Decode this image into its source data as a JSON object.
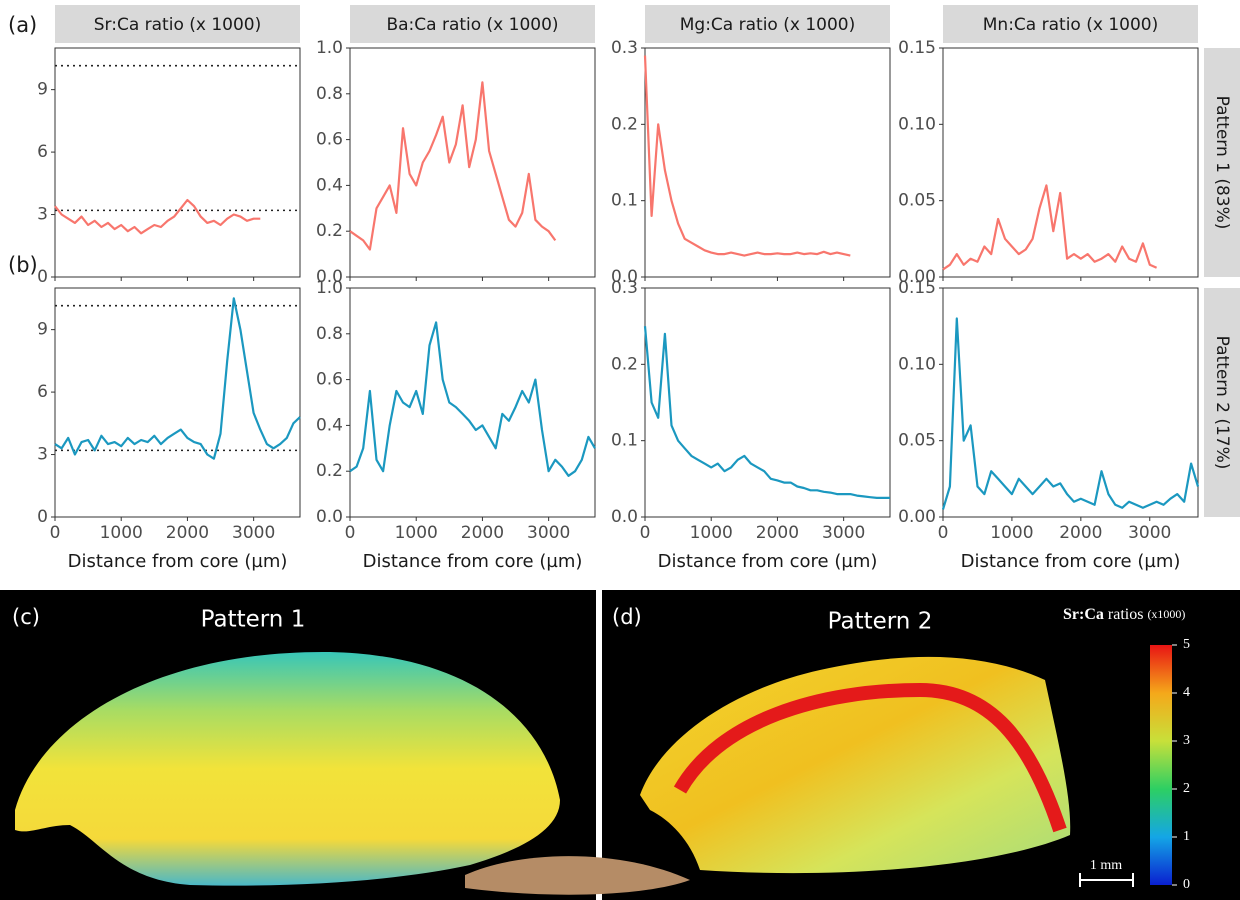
{
  "chart_data": {
    "type": "line",
    "xlabel": "Distance from core (µm)",
    "xlim": [
      0,
      3700
    ],
    "xticks": [
      0,
      1000,
      2000,
      3000
    ],
    "panels": [
      {
        "title": "Sr:Ca ratio (x 1000)",
        "ylim": [
          0,
          11
        ],
        "yticks": [
          0,
          3,
          6,
          9
        ],
        "reference_lines": [
          3.2,
          10.15
        ]
      },
      {
        "title": "Ba:Ca ratio (x 1000)",
        "ylim": [
          0,
          1
        ],
        "yticks": [
          {
            "value": 0,
            "label": "0.0"
          },
          0.2,
          0.4,
          0.6,
          0.8,
          {
            "value": 1,
            "label": "1.0"
          }
        ]
      },
      {
        "title": "Mg:Ca ratio (x 1000)",
        "ylim": [
          0,
          0.3
        ],
        "yticks": [
          {
            "value": 0,
            "label": "0.0"
          },
          0.1,
          0.2,
          0.3
        ]
      },
      {
        "title": "Mn:Ca ratio (x 1000)",
        "ylim": [
          0,
          0.15
        ],
        "yticks": [
          {
            "value": 0,
            "label": "0.00"
          },
          0.05,
          {
            "value": 0.1,
            "label": "0.10"
          },
          0.15
        ]
      }
    ],
    "rows": [
      {
        "tag": "(a)",
        "label": "Pattern 1 (83%)",
        "color": "#f8766d",
        "x": [
          0,
          100,
          200,
          300,
          400,
          500,
          600,
          700,
          800,
          900,
          1000,
          1100,
          1200,
          1300,
          1400,
          1500,
          1600,
          1700,
          1800,
          1900,
          2000,
          2100,
          2200,
          2300,
          2400,
          2500,
          2600,
          2700,
          2800,
          2900,
          3000,
          3100
        ],
        "series": [
          {
            "values": [
              3.4,
              3.0,
              2.8,
              2.6,
              2.9,
              2.5,
              2.7,
              2.4,
              2.6,
              2.3,
              2.5,
              2.2,
              2.4,
              2.1,
              2.3,
              2.5,
              2.4,
              2.7,
              2.9,
              3.3,
              3.7,
              3.4,
              2.9,
              2.6,
              2.7,
              2.5,
              2.8,
              3.0,
              2.9,
              2.7,
              2.8,
              2.8
            ]
          },
          {
            "values": [
              0.2,
              0.18,
              0.16,
              0.12,
              0.3,
              0.35,
              0.4,
              0.28,
              0.65,
              0.45,
              0.4,
              0.5,
              0.55,
              0.62,
              0.7,
              0.5,
              0.58,
              0.75,
              0.48,
              0.6,
              0.85,
              0.55,
              0.45,
              0.35,
              0.25,
              0.22,
              0.28,
              0.45,
              0.25,
              0.22,
              0.2,
              0.16
            ]
          },
          {
            "values": [
              0.29,
              0.08,
              0.2,
              0.14,
              0.1,
              0.07,
              0.05,
              0.045,
              0.04,
              0.035,
              0.032,
              0.03,
              0.03,
              0.032,
              0.03,
              0.028,
              0.03,
              0.032,
              0.03,
              0.03,
              0.031,
              0.03,
              0.03,
              0.032,
              0.03,
              0.031,
              0.03,
              0.033,
              0.03,
              0.032,
              0.03,
              0.028
            ]
          },
          {
            "values": [
              0.005,
              0.008,
              0.015,
              0.008,
              0.012,
              0.01,
              0.02,
              0.015,
              0.038,
              0.025,
              0.02,
              0.015,
              0.018,
              0.025,
              0.045,
              0.06,
              0.03,
              0.055,
              0.012,
              0.015,
              0.012,
              0.015,
              0.01,
              0.012,
              0.015,
              0.01,
              0.02,
              0.012,
              0.01,
              0.022,
              0.008,
              0.006
            ]
          }
        ]
      },
      {
        "tag": "(b)",
        "label": "Pattern 2 (17%)",
        "color": "#1b98c0",
        "x": [
          0,
          100,
          200,
          300,
          400,
          500,
          600,
          700,
          800,
          900,
          1000,
          1100,
          1200,
          1300,
          1400,
          1500,
          1600,
          1700,
          1800,
          1900,
          2000,
          2100,
          2200,
          2300,
          2400,
          2500,
          2600,
          2700,
          2800,
          2900,
          3000,
          3100,
          3200,
          3300,
          3400,
          3500,
          3600,
          3700
        ],
        "series": [
          {
            "values": [
              3.5,
              3.3,
              3.8,
              3.0,
              3.6,
              3.7,
              3.2,
              3.9,
              3.5,
              3.6,
              3.4,
              3.8,
              3.5,
              3.7,
              3.6,
              3.9,
              3.5,
              3.8,
              4.0,
              4.2,
              3.8,
              3.6,
              3.5,
              3.0,
              2.8,
              4.0,
              7.5,
              10.5,
              9.0,
              7.0,
              5.0,
              4.2,
              3.5,
              3.3,
              3.5,
              3.8,
              4.5,
              4.8
            ]
          },
          {
            "values": [
              0.2,
              0.22,
              0.3,
              0.55,
              0.25,
              0.2,
              0.4,
              0.55,
              0.5,
              0.48,
              0.55,
              0.45,
              0.75,
              0.85,
              0.6,
              0.5,
              0.48,
              0.45,
              0.42,
              0.38,
              0.4,
              0.35,
              0.3,
              0.45,
              0.42,
              0.48,
              0.55,
              0.5,
              0.6,
              0.38,
              0.2,
              0.25,
              0.22,
              0.18,
              0.2,
              0.25,
              0.35,
              0.3
            ]
          },
          {
            "values": [
              0.25,
              0.15,
              0.13,
              0.24,
              0.12,
              0.1,
              0.09,
              0.08,
              0.075,
              0.07,
              0.065,
              0.07,
              0.06,
              0.065,
              0.075,
              0.08,
              0.07,
              0.065,
              0.06,
              0.05,
              0.048,
              0.045,
              0.045,
              0.04,
              0.038,
              0.035,
              0.035,
              0.033,
              0.032,
              0.03,
              0.03,
              0.03,
              0.028,
              0.027,
              0.026,
              0.025,
              0.025,
              0.025
            ]
          },
          {
            "values": [
              0.005,
              0.02,
              0.13,
              0.05,
              0.06,
              0.02,
              0.015,
              0.03,
              0.025,
              0.02,
              0.015,
              0.025,
              0.02,
              0.015,
              0.02,
              0.025,
              0.02,
              0.022,
              0.015,
              0.01,
              0.012,
              0.01,
              0.008,
              0.03,
              0.015,
              0.008,
              0.006,
              0.01,
              0.008,
              0.006,
              0.008,
              0.01,
              0.008,
              0.012,
              0.015,
              0.01,
              0.035,
              0.02
            ]
          }
        ]
      }
    ]
  },
  "images": {
    "c": {
      "tag": "(c)",
      "title": "Pattern 1"
    },
    "d": {
      "tag": "(d)",
      "title": "Pattern 2"
    },
    "colorbar": {
      "title_bold": "Sr:Ca",
      "title": "ratios",
      "unit": "(x1000)",
      "ticks": [
        0,
        1,
        2,
        3,
        4,
        5
      ]
    },
    "scale_bar": "1 mm"
  }
}
